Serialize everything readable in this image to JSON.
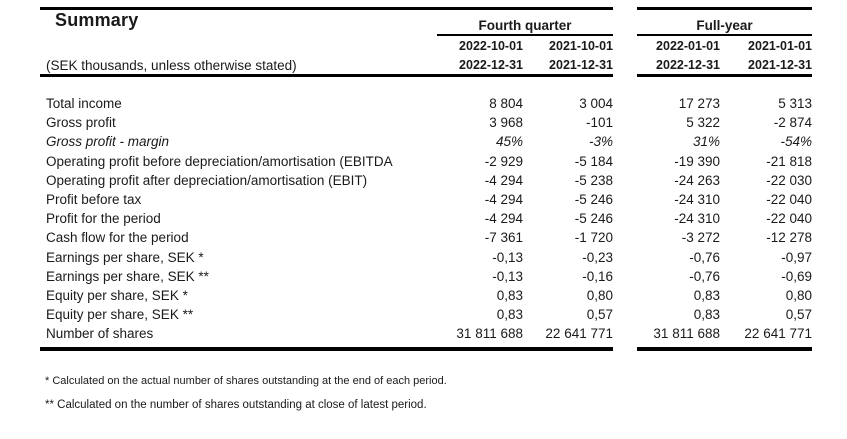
{
  "colors": {
    "background": "#ffffff",
    "text": "#1a1a1a",
    "rule": "#000000"
  },
  "document": {
    "title": "Summary",
    "unit_note": "(SEK thousands, unless otherwise stated)",
    "column_groups": [
      {
        "label": "Fourth quarter",
        "periods": [
          {
            "start": "2022-10-01",
            "end": "2022-12-31"
          },
          {
            "start": "2021-10-01",
            "end": "2021-12-31"
          }
        ]
      },
      {
        "label": "Full-year",
        "periods": [
          {
            "start": "2022-01-01",
            "end": "2022-12-31"
          },
          {
            "start": "2021-01-01",
            "end": "2021-12-31"
          }
        ]
      }
    ],
    "rows": [
      {
        "label": "Total income",
        "italic": false,
        "values": [
          "8 804",
          "3 004",
          "17 273",
          "5 313"
        ]
      },
      {
        "label": "Gross profit",
        "italic": false,
        "values": [
          "3 968",
          "-101",
          "5 322",
          "-2 874"
        ]
      },
      {
        "label": "Gross profit - margin",
        "italic": true,
        "values": [
          "45%",
          "-3%",
          "31%",
          "-54%"
        ]
      },
      {
        "label": "Operating profit before depreciation/amortisation (EBITDA",
        "italic": false,
        "values": [
          "-2 929",
          "-5 184",
          "-19 390",
          "-21 818"
        ]
      },
      {
        "label": "Operating profit after depreciation/amortisation (EBIT)",
        "italic": false,
        "values": [
          "-4 294",
          "-5 238",
          "-24 263",
          "-22 030"
        ]
      },
      {
        "label": "Profit before tax",
        "italic": false,
        "values": [
          "-4 294",
          "-5 246",
          "-24 310",
          "-22 040"
        ]
      },
      {
        "label": "Profit for the period",
        "italic": false,
        "values": [
          "-4 294",
          "-5 246",
          "-24 310",
          "-22 040"
        ]
      },
      {
        "label": "Cash flow for the period",
        "italic": false,
        "values": [
          "-7 361",
          "-1 720",
          "-3 272",
          "-12 278"
        ]
      },
      {
        "label": "Earnings per share, SEK *",
        "italic": false,
        "values": [
          "-0,13",
          "-0,23",
          "-0,76",
          "-0,97"
        ]
      },
      {
        "label": "Earnings per share, SEK **",
        "italic": false,
        "values": [
          "-0,13",
          "-0,16",
          "-0,76",
          "-0,69"
        ]
      },
      {
        "label": "Equity per share, SEK *",
        "italic": false,
        "values": [
          "0,83",
          "0,80",
          "0,83",
          "0,80"
        ]
      },
      {
        "label": "Equity per share, SEK **",
        "italic": false,
        "values": [
          "0,83",
          "0,57",
          "0,83",
          "0,57"
        ]
      },
      {
        "label": "Number of shares",
        "italic": false,
        "values": [
          "31 811 688",
          "22 641 771",
          "31 811 688",
          "22 641 771"
        ]
      }
    ],
    "footnotes": [
      "* Calculated on the actual number of shares outstanding at the end of each period.",
      "** Calculated on the number of shares outstanding at close of latest period."
    ]
  }
}
